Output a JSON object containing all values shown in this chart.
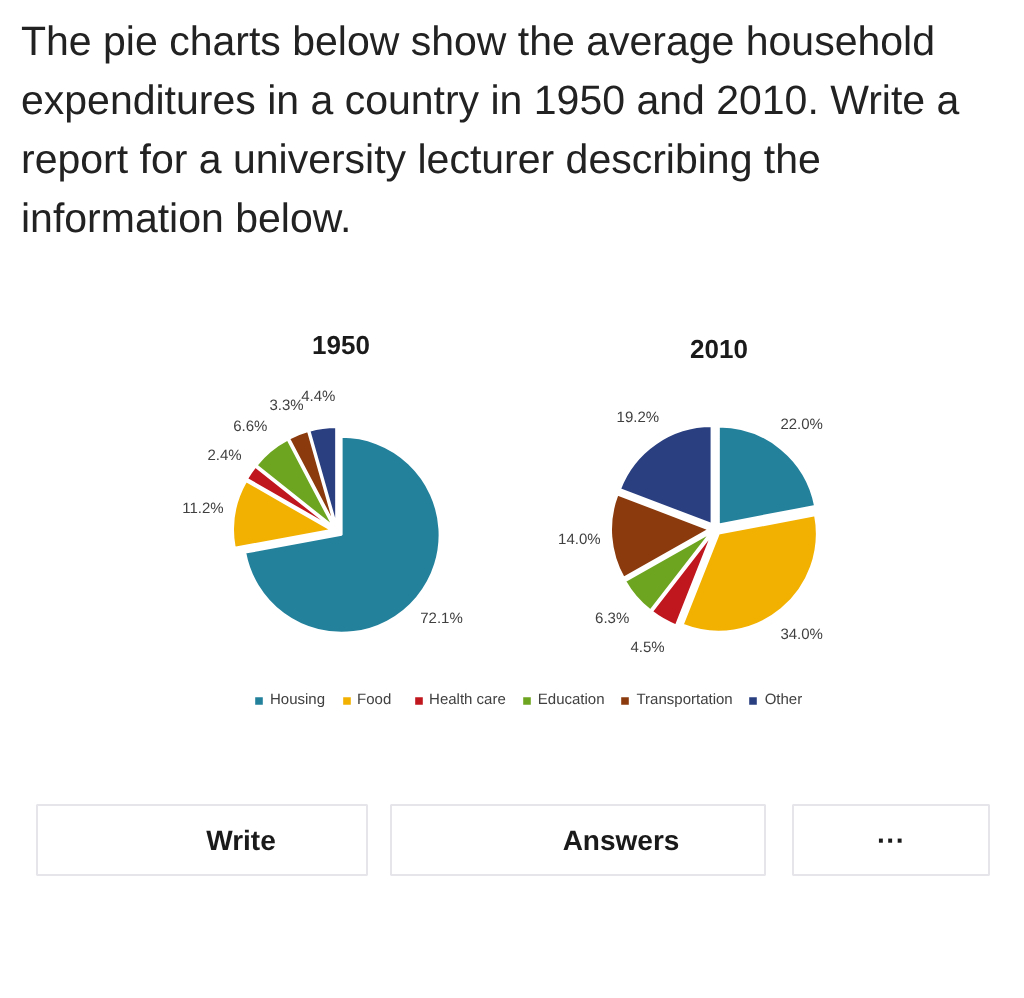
{
  "chart_data": [
    {
      "type": "other",
      "title": "The pie charts below show the average household expenditures in a country in 1950 and 2010. Write a report for a university lecturer describing the information below."
    },
    {
      "type": "pie",
      "title": "1950",
      "categories": [
        "Housing",
        "Food",
        "Health care",
        "Education",
        "Transportation",
        "Other"
      ],
      "values": [
        72.1,
        11.2,
        2.4,
        6.6,
        3.3,
        4.4
      ],
      "colors": [
        "#23819c",
        "#f2b000",
        "#c0161e",
        "#6ea520",
        "#8a3a0c",
        "#2a3f80"
      ],
      "value_labels": [
        "72.1%",
        "11.2%",
        "2.4%",
        "6.6%",
        "3.3%",
        "4.4%"
      ],
      "legend": "bottom"
    },
    {
      "type": "pie",
      "title": "2010",
      "values": [
        22.0,
        34.0,
        4.5,
        6.3,
        14.0,
        19.2
      ],
      "colors": [
        "#23819c",
        "#f2b000",
        "#c0161e",
        "#6ea520",
        "#8a3a0c",
        "#2a3f80"
      ],
      "value_labels": [
        "22.0%",
        "34.0%",
        "4.5%",
        "6.3%",
        "14.0%",
        "19.2%"
      ]
    },
    {
      "type": "other",
      "annotations": [
        "Write",
        "Answers",
        "···"
      ]
    }
  ]
}
